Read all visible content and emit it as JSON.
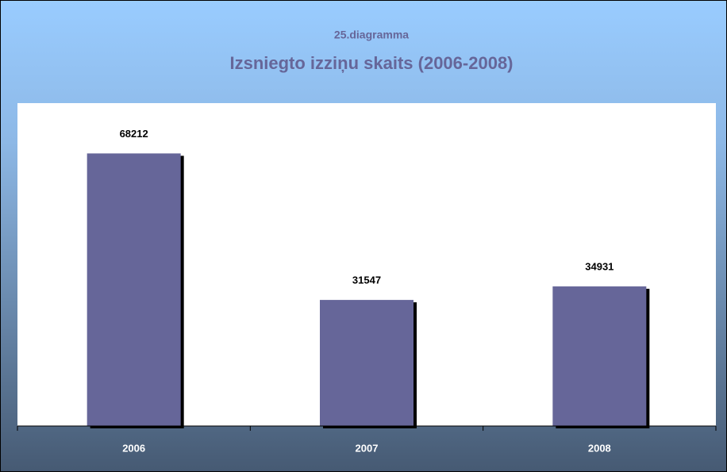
{
  "chart_data": {
    "type": "bar",
    "subtitle": "25.diagramma",
    "title": "Izsniegto izziņu skaits (2006-2008)",
    "categories": [
      "2006",
      "2007",
      "2008"
    ],
    "values": [
      68212,
      31547,
      34931
    ],
    "color": "#666699",
    "ylim": [
      0,
      80800
    ]
  }
}
